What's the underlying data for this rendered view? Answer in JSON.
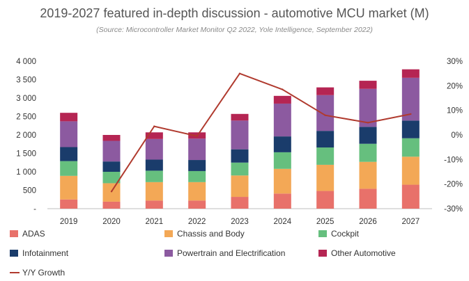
{
  "chart_data": {
    "type": "bar",
    "stacked": true,
    "title": "2019-2027 featured in-depth discussion - automotive MCU market (M)",
    "subtitle": "(Source: Microcontroller Market Monitor Q2 2022, Yole Intelligence, September 2022)",
    "categories": [
      "2019",
      "2020",
      "2021",
      "2022",
      "2023",
      "2024",
      "2025",
      "2026",
      "2027"
    ],
    "y_ticks": [
      "4 000",
      "3 500",
      "3 000",
      "2 500",
      "2 000",
      "1 500",
      "1 000",
      "500",
      "-"
    ],
    "y_tick_values": [
      4000,
      3500,
      3000,
      2500,
      2000,
      1500,
      1000,
      500,
      0
    ],
    "y2_ticks": [
      "30%",
      "20%",
      "10%",
      "0%",
      "-10%",
      "-20%",
      "-30%"
    ],
    "y2_tick_values": [
      30,
      20,
      10,
      0,
      -10,
      -20,
      -30
    ],
    "ylim": [
      0,
      4000
    ],
    "y2lim": [
      -30,
      30
    ],
    "series": [
      {
        "name": "ADAS",
        "color": "#e8716a",
        "values": [
          250,
          190,
          220,
          220,
          320,
          410,
          480,
          540,
          650
        ]
      },
      {
        "name": "Chassis and Body",
        "color": "#f3a856",
        "values": [
          640,
          500,
          500,
          500,
          580,
          670,
          710,
          730,
          760
        ]
      },
      {
        "name": "Cockpit",
        "color": "#66bf7e",
        "values": [
          400,
          310,
          310,
          300,
          350,
          450,
          470,
          490,
          500
        ]
      },
      {
        "name": "Infotainment",
        "color": "#1a3c6b",
        "values": [
          380,
          280,
          300,
          300,
          360,
          430,
          450,
          460,
          480
        ]
      },
      {
        "name": "Powertrain and Electrification",
        "color": "#8c5aa0",
        "values": [
          700,
          560,
          560,
          580,
          780,
          890,
          970,
          1030,
          1160
        ]
      },
      {
        "name": "Other Automotive",
        "color": "#b52553",
        "values": [
          230,
          160,
          180,
          170,
          180,
          210,
          210,
          220,
          230
        ]
      }
    ],
    "line_series": {
      "name": "Y/Y Growth",
      "color": "#b03a2e",
      "axis": "secondary",
      "values": [
        null,
        -23,
        3.5,
        -0.5,
        25,
        18.5,
        8,
        5,
        8.5
      ]
    },
    "grid": false,
    "legend": "bottom"
  }
}
